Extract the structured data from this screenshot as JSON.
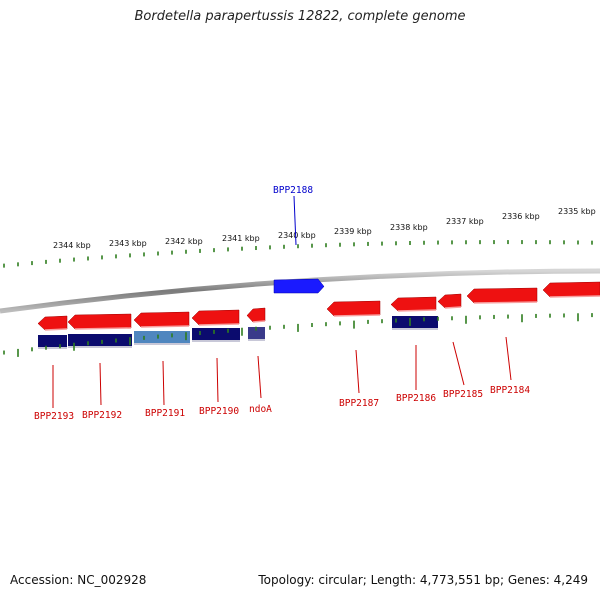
{
  "title": "Bordetella parapertussis 12822, complete genome",
  "footer": {
    "accession": "Accession: NC_002928",
    "summary": "Topology: circular; Length: 4,773,551 bp; Genes: 4,249"
  },
  "colors": {
    "backbone": "#8c8c8c",
    "tick": "#2e7d1e",
    "forward_gene": "#1a1aff",
    "forward_label": "#0000cc",
    "reverse_gene": "#ee1111",
    "reverse_label": "#cc0000",
    "cds_dark": "#0b0b6e",
    "cds_light": "#4f86bf"
  },
  "scale_labels": [
    "2344 kbp",
    "2343 kbp",
    "2342 kbp",
    "2341 kbp",
    "2340 kbp",
    "2339 kbp",
    "2338 kbp",
    "2337 kbp",
    "2336 kbp",
    "2335 kbp"
  ],
  "forward_genes": [
    {
      "label": "BPP2188"
    }
  ],
  "reverse_genes": [
    {
      "label": "BPP2193"
    },
    {
      "label": "BPP2192"
    },
    {
      "label": "BPP2191"
    },
    {
      "label": "BPP2190"
    },
    {
      "label": "ndoA"
    },
    {
      "label": "BPP2187"
    },
    {
      "label": "BPP2186"
    },
    {
      "label": "BPP2185"
    },
    {
      "label": "BPP2184"
    }
  ]
}
